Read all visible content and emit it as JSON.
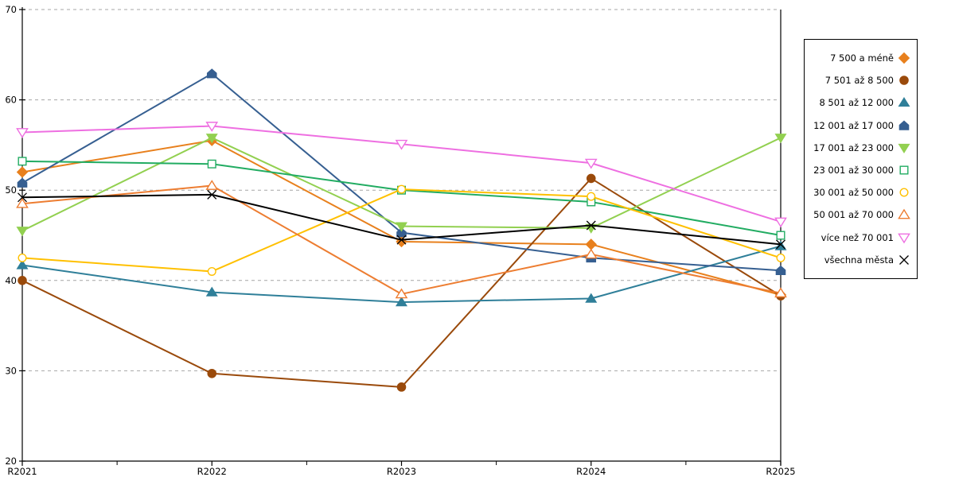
{
  "chart_data": {
    "type": "line",
    "title": "",
    "xlabel": "",
    "ylabel": "",
    "categories": [
      "R2021",
      "R2022",
      "R2023",
      "R2024",
      "R2025"
    ],
    "ylim": [
      20,
      70
    ],
    "ytick_interval": 10,
    "ytick_labels": [
      "20",
      "30",
      "40",
      "50",
      "60",
      "70"
    ],
    "grid": "horizontal dashed gridlines at each ytick",
    "legend_position": "right",
    "series": [
      {
        "name": "7 500 a méně",
        "color": "#E8801D",
        "marker": "diamond",
        "fill": "solid",
        "values": [
          52.0,
          55.5,
          44.3,
          44.0,
          38.4
        ]
      },
      {
        "name": "7 501 až 8 500",
        "color": "#9A4A0B",
        "marker": "circle",
        "fill": "solid",
        "values": [
          40.0,
          29.7,
          28.2,
          51.3,
          38.3
        ]
      },
      {
        "name": "8 501 až 12 000",
        "color": "#2F7F99",
        "marker": "triangle-up",
        "fill": "solid",
        "values": [
          41.7,
          38.7,
          37.6,
          38.0,
          43.8
        ]
      },
      {
        "name": "12 001 až 17 000",
        "color": "#365F91",
        "marker": "pentagon",
        "fill": "solid",
        "values": [
          50.8,
          62.9,
          45.3,
          42.5,
          41.1
        ]
      },
      {
        "name": "17 001 až 23 000",
        "color": "#92D050",
        "marker": "triangle-down",
        "fill": "solid",
        "values": [
          45.5,
          55.8,
          46.0,
          45.8,
          55.8
        ]
      },
      {
        "name": "23 001 až 30 000",
        "color": "#22AC62",
        "marker": "square",
        "fill": "open",
        "values": [
          53.2,
          52.9,
          50.0,
          48.7,
          45.0
        ]
      },
      {
        "name": "30 001 až 50 000",
        "color": "#FFC000",
        "marker": "circle",
        "fill": "open",
        "values": [
          42.5,
          41.0,
          50.1,
          49.3,
          42.5
        ]
      },
      {
        "name": "50 001 až 70 000",
        "color": "#ED7D31",
        "marker": "triangle-up",
        "fill": "open",
        "values": [
          48.5,
          50.5,
          38.5,
          42.9,
          38.6
        ]
      },
      {
        "name": "více než 70 001",
        "color": "#EE6FE1",
        "marker": "triangle-down",
        "fill": "open",
        "values": [
          56.4,
          57.1,
          55.1,
          53.0,
          46.5
        ]
      },
      {
        "name": "všechna města",
        "color": "#000000",
        "marker": "x",
        "fill": "open",
        "values": [
          49.2,
          49.5,
          44.5,
          46.1,
          44.0
        ]
      }
    ]
  },
  "colors": {
    "background": "#FFFFFF",
    "gridline": "#A6A6A6",
    "axis": "#000000",
    "legend_border": "#000000",
    "text": "#000000"
  }
}
